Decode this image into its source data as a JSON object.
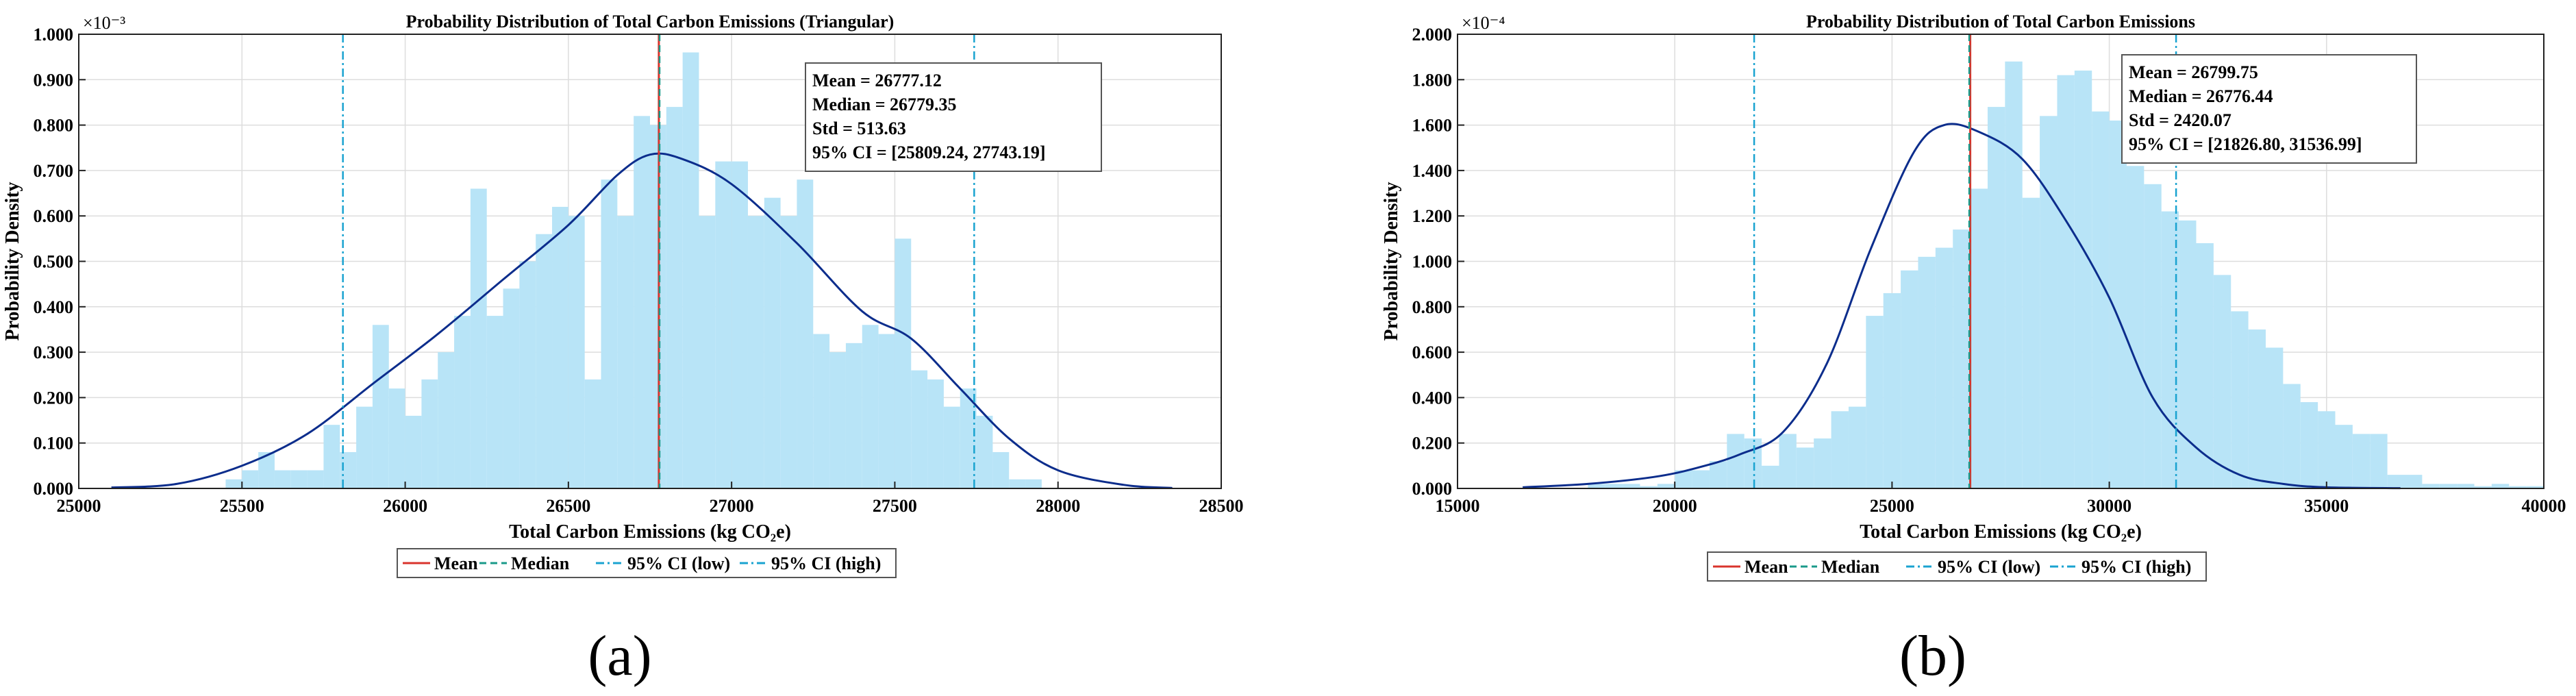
{
  "colors": {
    "bar": "#b8e4f7",
    "kde": "#0c2d8c",
    "mean": "#d9342c",
    "median": "#1a9a8a",
    "ci": "#1aa3d0",
    "grid": "#dddddd"
  },
  "chart_data": [
    {
      "type": "bar",
      "panel_label": "(a)",
      "title": "Probability Distribution of Total Carbon Emissions (Triangular)",
      "xlabel": "Total Carbon Emissions (kg CO₂e)",
      "ylabel": "Probability Density",
      "exponent": "×10⁻³",
      "xlim": [
        25000,
        28500
      ],
      "ylim": [
        0,
        0.001
      ],
      "xticks": [
        25000,
        25500,
        26000,
        26500,
        27000,
        27500,
        28000,
        28500
      ],
      "xtick_labels": [
        "25000",
        "25500",
        "26000",
        "26500",
        "27000",
        "27500",
        "28000",
        "28500"
      ],
      "yticks": [
        0,
        0.0001,
        0.0002,
        0.0003,
        0.0004,
        0.0005,
        0.0006,
        0.0007,
        0.0008,
        0.0009,
        0.001
      ],
      "ytick_labels": [
        "0.000",
        "0.100",
        "0.200",
        "0.300",
        "0.400",
        "0.500",
        "0.600",
        "0.700",
        "0.800",
        "0.900",
        "1.000"
      ],
      "hist": {
        "start": 25450,
        "bin_width": 50,
        "values": [
          2e-05,
          4e-05,
          8e-05,
          4e-05,
          4e-05,
          4e-05,
          0.00014,
          8e-05,
          0.00018,
          0.00036,
          0.00022,
          0.00016,
          0.00024,
          0.0003,
          0.00038,
          0.00066,
          0.00038,
          0.00044,
          0.0005,
          0.00056,
          0.00062,
          0.0006,
          0.00024,
          0.00068,
          0.0006,
          0.00082,
          0.0008,
          0.00084,
          0.00096,
          0.0006,
          0.00072,
          0.00072,
          0.0006,
          0.00064,
          0.0006,
          0.00068,
          0.00034,
          0.0003,
          0.00032,
          0.00036,
          0.00034,
          0.00055,
          0.00026,
          0.00024,
          0.00018,
          0.00022,
          0.00016,
          8e-05,
          2e-05,
          2e-05
        ]
      },
      "kde": {
        "x": [
          25100,
          25300,
          25500,
          25700,
          25900,
          26100,
          26300,
          26500,
          26650,
          26750,
          26850,
          27000,
          27200,
          27400,
          27550,
          27700,
          27850,
          28000,
          28200,
          28350
        ],
        "y": [
          2e-06,
          1e-05,
          5e-05,
          0.00012,
          0.00023,
          0.00034,
          0.00046,
          0.00058,
          0.00069,
          0.000735,
          0.000725,
          0.00067,
          0.00054,
          0.00039,
          0.00033,
          0.00022,
          0.00011,
          4e-05,
          8e-06,
          1e-06
        ]
      },
      "lines": {
        "mean": 26777.12,
        "median": 26779.35,
        "ci_low": 25809.24,
        "ci_high": 27743.19
      },
      "stats": [
        "Mean = 26777.12",
        "Median = 26779.35",
        "Std = 513.63",
        "95% CI = [25809.24, 27743.19]"
      ],
      "legend": [
        "Mean",
        "Median",
        "95% CI (low)",
        "95% CI (high)"
      ]
    },
    {
      "type": "bar",
      "panel_label": "(b)",
      "title": "Probability Distribution of Total Carbon Emissions",
      "xlabel": "Total Carbon Emissions (kg CO₂e)",
      "ylabel": "Probability Density",
      "exponent": "×10⁻⁴",
      "xlim": [
        15000,
        40000
      ],
      "ylim": [
        0,
        0.0002
      ],
      "xticks": [
        15000,
        20000,
        25000,
        30000,
        35000,
        40000
      ],
      "xtick_labels": [
        "15000",
        "20000",
        "25000",
        "30000",
        "35000",
        "40000"
      ],
      "yticks": [
        0,
        2e-05,
        4e-05,
        6e-05,
        8e-05,
        0.0001,
        0.00012,
        0.00014,
        0.00016,
        0.00018,
        0.0002
      ],
      "ytick_labels": [
        "0.000",
        "0.200",
        "0.400",
        "0.600",
        "0.800",
        "1.000",
        "1.200",
        "1.400",
        "1.600",
        "1.800",
        "2.000"
      ],
      "hist": {
        "start": 18000,
        "bin_width": 400,
        "values": [
          2e-06,
          2e-06,
          2e-06,
          1e-06,
          2e-06,
          8e-06,
          8e-06,
          1.2e-05,
          2.4e-05,
          2.2e-05,
          1e-05,
          2.4e-05,
          1.8e-05,
          2.2e-05,
          3.4e-05,
          3.6e-05,
          7.6e-05,
          8.6e-05,
          9.6e-05,
          0.000102,
          0.000106,
          0.000114,
          0.000132,
          0.000168,
          0.000188,
          0.000128,
          0.000164,
          0.000182,
          0.000184,
          0.000166,
          0.000162,
          0.000142,
          0.000134,
          0.000122,
          0.000118,
          0.000108,
          9.4e-05,
          7.8e-05,
          7e-05,
          6.2e-05,
          4.6e-05,
          3.8e-05,
          3.4e-05,
          2.8e-05,
          2.4e-05,
          2.4e-05,
          6e-06,
          6e-06,
          2e-06,
          2e-06,
          2e-06,
          1e-06,
          2e-06,
          1e-06,
          1e-06
        ]
      },
      "kde": {
        "x": [
          16500,
          18000,
          19500,
          20500,
          21500,
          22500,
          23500,
          24500,
          25500,
          26200,
          27000,
          28000,
          29000,
          30000,
          31000,
          32000,
          33000,
          34000,
          35000,
          36700
        ],
        "y": [
          5e-07,
          2e-06,
          5e-06,
          9e-06,
          1.5e-05,
          2.5e-05,
          5.5e-05,
          0.000105,
          0.000148,
          0.00016,
          0.000157,
          0.000145,
          0.000118,
          8.4e-05,
          4e-05,
          1.8e-05,
          6e-06,
          2e-06,
          5e-07,
          1e-07
        ]
      },
      "lines": {
        "mean": 26799.75,
        "median": 26776.44,
        "ci_low": 21826.8,
        "ci_high": 31536.99
      },
      "stats": [
        "Mean = 26799.75",
        "Median = 26776.44",
        "Std = 2420.07",
        "95% CI = [21826.80, 31536.99]"
      ],
      "legend": [
        "Mean",
        "Median",
        "95% CI (low)",
        "95% CI (high)"
      ]
    }
  ]
}
